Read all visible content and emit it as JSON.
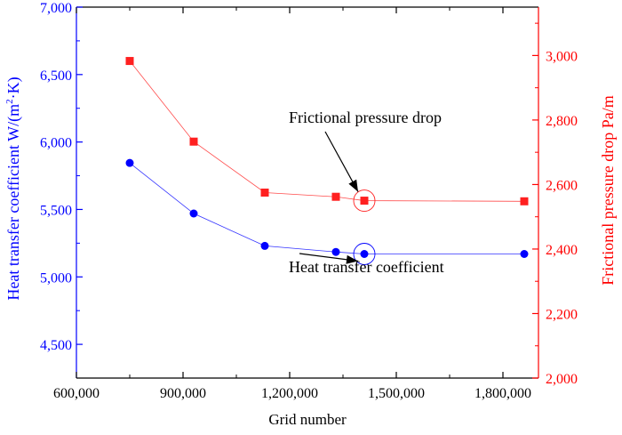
{
  "chart_data": {
    "type": "line",
    "xlabel": "Grid number",
    "ylabel_left": "Heat transfer coefficient  W/(m²·K)",
    "ylabel_left_parts": [
      "Heat transfer coefficient  W/(m",
      "2",
      "·K)"
    ],
    "ylabel_right": "Frictional pressure drop  Pa/m",
    "xlim": [
      600000,
      1900000
    ],
    "ylim_left": [
      4250,
      7000
    ],
    "ylim_right": [
      2000,
      3150
    ],
    "x_ticks": [
      600000,
      900000,
      1200000,
      1500000,
      1800000
    ],
    "x_tick_labels": [
      "600,000",
      "900,000",
      "1,200,000",
      "1,500,000",
      "1,800,000"
    ],
    "y_left_ticks": [
      4500,
      5000,
      5500,
      6000,
      6500,
      7000
    ],
    "y_left_tick_labels": [
      "4,500",
      "5,000",
      "5,500",
      "6,000",
      "6,500",
      "7,000"
    ],
    "y_right_ticks": [
      2000,
      2200,
      2400,
      2600,
      2800,
      3000
    ],
    "y_right_tick_labels": [
      "2,000",
      "2,200",
      "2,400",
      "2,600",
      "2,800",
      "3,000"
    ],
    "grid": false,
    "series": [
      {
        "axis": "left",
        "marker": "circle",
        "color": "#0000ff",
        "x": [
          750000,
          930000,
          1130000,
          1330000,
          1410000,
          1860000
        ],
        "values": [
          5845,
          5470,
          5230,
          5185,
          5170,
          5170
        ]
      },
      {
        "axis": "right",
        "marker": "square",
        "color": "#ff2020",
        "x": [
          750000,
          930000,
          1130000,
          1330000,
          1410000,
          1860000
        ],
        "values": [
          2983,
          2733,
          2575,
          2562,
          2550,
          2548
        ]
      }
    ],
    "annotations": [
      {
        "id": "pressure-note",
        "text": "Frictional pressure drop",
        "series": 1,
        "point": 4
      },
      {
        "id": "htc-note",
        "text": "Heat transfer coefficient",
        "series": 0,
        "point": 4
      }
    ]
  },
  "colors": {
    "left_axis": "#0000ff",
    "right_axis": "#ff0000",
    "axis": "#000000"
  }
}
